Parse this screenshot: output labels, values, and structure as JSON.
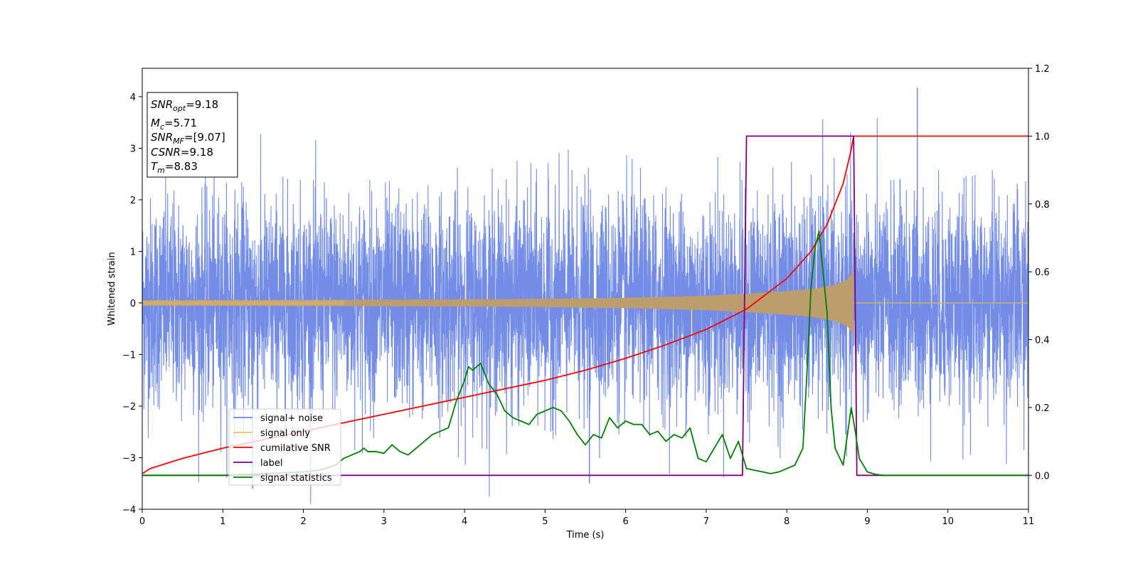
{
  "chart_data": {
    "type": "line",
    "xlabel": "Time (s)",
    "ylabel": "Whitened strain",
    "xlim": [
      0,
      11
    ],
    "ylim": [
      -4.0,
      4.55
    ],
    "y2lim": [
      -0.1,
      1.2
    ],
    "x_ticks": [
      0,
      1,
      2,
      3,
      4,
      5,
      6,
      7,
      8,
      9,
      10,
      11
    ],
    "y_ticks": [
      -4,
      -3,
      -2,
      -1,
      0,
      1,
      2,
      3,
      4
    ],
    "y2_ticks": [
      "0.0",
      "0.2",
      "0.4",
      "0.6",
      "0.8",
      "1.0",
      "1.2"
    ],
    "stats_box": [
      {
        "base": "SNR",
        "sub": "opt",
        "value": "=9.18"
      },
      {
        "base": "M",
        "sub": "c",
        "value": "=5.71"
      },
      {
        "base": "SNR",
        "sub": "MF",
        "value": "=[9.07]"
      },
      {
        "base": "CSNR",
        "sub": "",
        "value": "=9.18"
      },
      {
        "base": "T",
        "sub": "m",
        "value": "=8.83"
      }
    ],
    "legend": {
      "location": "lower-left",
      "entries": [
        {
          "label": "signal+ noise",
          "color": "#6b87e6"
        },
        {
          "label": "signal only",
          "color": "#f7c56b"
        },
        {
          "label": "cumilative SNR",
          "color": "#ff0000"
        },
        {
          "label": "label",
          "color": "#800080"
        },
        {
          "label": "signal statistics",
          "color": "#008000"
        }
      ]
    },
    "series": [
      {
        "name": "signal+ noise",
        "axis": "left",
        "color": "#6b87e6",
        "description_values": {
          "noise_std": 1.0,
          "max": 4.17,
          "min": -3.6,
          "spike_x": [
            9.62,
            1.37,
            5.55
          ]
        }
      },
      {
        "name": "signal only",
        "axis": "left",
        "color": "#f7c56b",
        "envelope_x": [
          0,
          2,
          4,
          5,
          6,
          7,
          7.5,
          8,
          8.3,
          8.6,
          8.75,
          8.82,
          8.83
        ],
        "envelope_y": [
          0.05,
          0.06,
          0.07,
          0.08,
          0.1,
          0.14,
          0.18,
          0.23,
          0.27,
          0.35,
          0.45,
          0.6,
          0.85
        ]
      },
      {
        "name": "cumilative SNR",
        "axis": "right",
        "color": "#ff0000",
        "x": [
          0,
          0.1,
          0.5,
          1,
          2,
          3,
          4,
          5,
          5.5,
          6,
          6.5,
          7,
          7.5,
          8,
          8.3,
          8.5,
          8.7,
          8.8,
          8.83,
          11
        ],
        "y": [
          0.005,
          0.02,
          0.05,
          0.08,
          0.13,
          0.18,
          0.23,
          0.28,
          0.31,
          0.345,
          0.385,
          0.43,
          0.49,
          0.58,
          0.66,
          0.74,
          0.86,
          0.96,
          1.0,
          1.0
        ]
      },
      {
        "name": "label",
        "axis": "right",
        "color": "#800080",
        "x": [
          0,
          7.45,
          7.5,
          8.83,
          8.87,
          11
        ],
        "y": [
          0,
          0,
          1,
          1,
          0,
          0
        ]
      },
      {
        "name": "signal statistics",
        "axis": "right",
        "color": "#008000",
        "x": [
          0,
          1.0,
          1.5,
          2.0,
          2.2,
          2.4,
          2.5,
          2.6,
          2.7,
          2.75,
          2.8,
          2.9,
          3.0,
          3.1,
          3.2,
          3.3,
          3.4,
          3.5,
          3.6,
          3.7,
          3.8,
          3.9,
          4.0,
          4.05,
          4.1,
          4.2,
          4.3,
          4.4,
          4.5,
          4.6,
          4.7,
          4.8,
          4.9,
          5.0,
          5.1,
          5.2,
          5.3,
          5.4,
          5.5,
          5.6,
          5.7,
          5.8,
          5.9,
          6.0,
          6.1,
          6.2,
          6.3,
          6.4,
          6.5,
          6.6,
          6.7,
          6.8,
          6.9,
          7.0,
          7.1,
          7.2,
          7.3,
          7.4,
          7.5,
          7.6,
          7.7,
          7.8,
          7.9,
          8.0,
          8.1,
          8.2,
          8.25,
          8.3,
          8.35,
          8.4,
          8.45,
          8.5,
          8.55,
          8.6,
          8.7,
          8.8,
          8.85,
          8.9,
          9.0,
          9.1,
          9.2,
          9.5,
          10,
          11
        ],
        "y": [
          0.0,
          0.0,
          0.005,
          0.01,
          0.015,
          0.03,
          0.05,
          0.06,
          0.07,
          0.08,
          0.07,
          0.07,
          0.065,
          0.09,
          0.07,
          0.06,
          0.08,
          0.1,
          0.12,
          0.13,
          0.14,
          0.22,
          0.28,
          0.32,
          0.31,
          0.33,
          0.27,
          0.24,
          0.19,
          0.17,
          0.16,
          0.15,
          0.18,
          0.19,
          0.2,
          0.19,
          0.16,
          0.12,
          0.09,
          0.12,
          0.11,
          0.17,
          0.14,
          0.16,
          0.15,
          0.15,
          0.12,
          0.13,
          0.1,
          0.12,
          0.11,
          0.14,
          0.05,
          0.04,
          0.08,
          0.12,
          0.05,
          0.1,
          0.02,
          0.015,
          0.01,
          0.005,
          0.01,
          0.02,
          0.03,
          0.08,
          0.3,
          0.55,
          0.67,
          0.72,
          0.6,
          0.48,
          0.2,
          0.08,
          0.03,
          0.2,
          0.13,
          0.05,
          0.01,
          0.003,
          0.0,
          0.0,
          0.0,
          0.0
        ]
      }
    ]
  }
}
